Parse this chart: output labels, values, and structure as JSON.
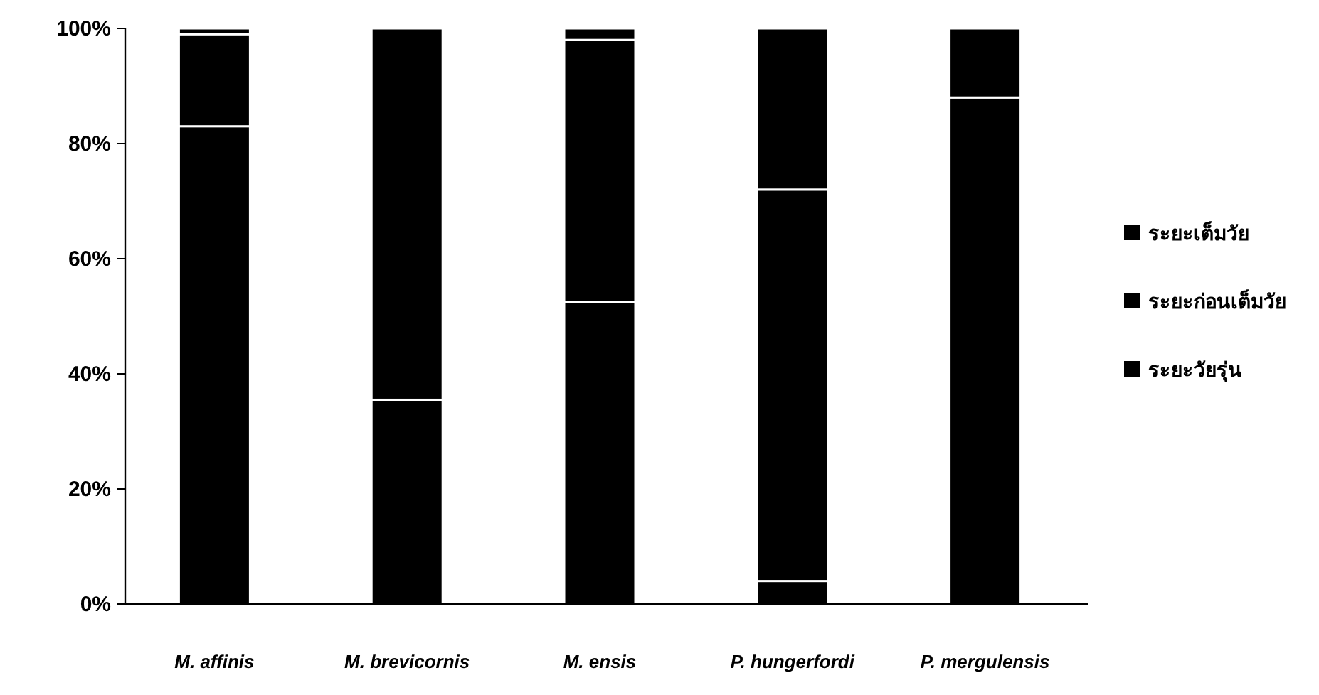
{
  "chart_data": {
    "type": "bar",
    "stacked": true,
    "categories": [
      "M. affinis",
      "M. brevicornis",
      "M. ensis",
      "P. hungerfordi",
      "P. mergulensis"
    ],
    "series": [
      {
        "name": "ระยะวัยรุ่น",
        "color": "#000000",
        "values": [
          83,
          35.5,
          52.5,
          4,
          88
        ]
      },
      {
        "name": "ระยะก่อนเต็มวัย",
        "color": "#000000",
        "values": [
          16,
          64.5,
          45.5,
          68,
          12
        ]
      },
      {
        "name": "ระยะเต็มวัย",
        "color": "#000000",
        "values": [
          1,
          0,
          2,
          28,
          0
        ]
      }
    ],
    "ylim": [
      0,
      100
    ],
    "yticks": [
      {
        "value": 0,
        "label": "0%"
      },
      {
        "value": 20,
        "label": "20%"
      },
      {
        "value": 40,
        "label": "40%"
      },
      {
        "value": 60,
        "label": "60%"
      },
      {
        "value": 80,
        "label": "80%"
      },
      {
        "value": 100,
        "label": "100%"
      }
    ],
    "grid": false,
    "legend": "right"
  }
}
